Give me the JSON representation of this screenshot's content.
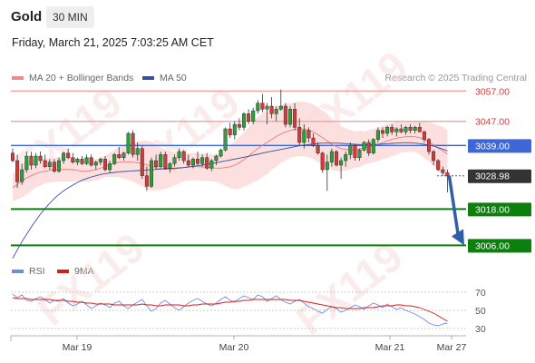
{
  "header": {
    "title": "Gold",
    "timeframe": "30 MIN"
  },
  "timestamp": "Friday, March 21, 2025 7:03:25 AM CET",
  "legend": {
    "ma20": {
      "label": "MA 20 + Bollinger Bands",
      "color": "#f08a8a"
    },
    "ma50": {
      "label": "MA 50",
      "color": "#3a4e9c"
    }
  },
  "credit": "Research © 2025 Trading Central",
  "watermark": "FX119",
  "colors": {
    "up": "#2f9e3a",
    "down": "#d23b3b",
    "wick": "#333333",
    "band": "#fcd9d9",
    "resistance": "#f2a3a3",
    "pivot": "#3d66d6",
    "support": "#0c7f0c",
    "arrow": "#2f5fa8",
    "rsi": "#6f8ce0",
    "rsi_ma": "#d81c1c"
  },
  "chart_data": [
    {
      "type": "line",
      "subtype": "candlestick",
      "title": "Gold",
      "xlabel": "",
      "ylabel": "",
      "ylim": [
        3000.7,
        3060.7
      ],
      "x_ticks": [
        "Mar 19",
        "Mar 20",
        "Mar 21",
        "Mar 27"
      ],
      "grid": false,
      "series": [
        {
          "name": "MA 20 + Bollinger Bands",
          "kind": "ma",
          "values": [
            3025.0,
            3026.2,
            3027.3,
            3028.3,
            3029.0,
            3029.7,
            3030.2,
            3030.5,
            3030.8,
            3031.0,
            3031.1,
            3031.1,
            3031.1,
            3031.0,
            3030.8,
            3030.5,
            3030.5,
            3030.7,
            3031.0,
            3031.5,
            3032.0,
            3032.6,
            3033.1,
            3033.5,
            3033.6,
            3033.6,
            3033.5,
            3033.3,
            3033.0,
            3032.6,
            3032.2,
            3031.7,
            3031.4,
            3031.2,
            3031.2,
            3031.3,
            3031.5,
            3031.7,
            3031.9,
            3032.0,
            3032.0,
            3031.9,
            3031.8,
            3031.6,
            3031.5,
            3031.5,
            3031.7,
            3032.0,
            3032.5,
            3033.3,
            3034.3,
            3035.5,
            3036.8,
            3038.0,
            3039.1,
            3040.0,
            3041.0,
            3042.0,
            3042.8,
            3043.5,
            3044.0,
            3044.3,
            3044.5,
            3044.4,
            3044.1,
            3043.5,
            3042.6,
            3041.6,
            3040.5,
            3039.4,
            3038.6,
            3038.0,
            3037.7,
            3037.6,
            3037.7,
            3037.9,
            3038.2,
            3038.6,
            3039.0,
            3039.4,
            3039.9,
            3040.5,
            3041.0,
            3041.4,
            3041.7,
            3041.9,
            3042.0,
            3041.9,
            3041.6,
            3041.0,
            3040.2,
            3039.2,
            3038.2,
            3037.2,
            3036.1
          ]
        },
        {
          "name": "MA 50",
          "kind": "ma",
          "values": [
            3001.7,
            3004.5,
            3007.2,
            3009.6,
            3012.0,
            3014.2,
            3016.3,
            3018.2,
            3019.9,
            3021.5,
            3022.8,
            3024.0,
            3025.0,
            3025.9,
            3026.8,
            3027.5,
            3028.1,
            3028.6,
            3029.0,
            3029.4,
            3029.7,
            3029.9,
            3030.1,
            3030.3,
            3030.4,
            3030.5,
            3030.6,
            3030.7,
            3030.8,
            3030.9,
            3031.0,
            3031.1,
            3031.2,
            3031.3,
            3031.4,
            3031.5,
            3031.6,
            3031.7,
            3031.9,
            3032.1,
            3032.3,
            3032.5,
            3032.8,
            3033.0,
            3033.3,
            3033.6,
            3033.9,
            3034.2,
            3034.5,
            3034.8,
            3035.1,
            3035.4,
            3035.8,
            3036.1,
            3036.5,
            3036.8,
            3037.1,
            3037.4,
            3037.7,
            3038.0,
            3038.3,
            3038.6,
            3038.9,
            3039.1,
            3039.3,
            3039.5,
            3039.7,
            3039.8,
            3039.8,
            3039.8,
            3039.8,
            3039.7,
            3039.6,
            3039.5,
            3039.4,
            3039.3,
            3039.3,
            3039.3,
            3039.3,
            3039.4,
            3039.5,
            3039.6,
            3039.7,
            3039.8,
            3039.9,
            3039.9,
            3039.9,
            3039.8,
            3039.6,
            3039.4,
            3039.1,
            3038.8,
            3038.3,
            3037.8,
            3037.2
          ]
        }
      ],
      "candles": [
        [
          3036.5,
          3038.0,
          3033.5,
          3034.0
        ],
        [
          3034.0,
          3036.0,
          3025.0,
          3027.0
        ],
        [
          3027.0,
          3033.0,
          3026.0,
          3031.0
        ],
        [
          3031.0,
          3037.0,
          3030.0,
          3035.5
        ],
        [
          3035.5,
          3037.0,
          3031.0,
          3032.5
        ],
        [
          3032.5,
          3036.5,
          3031.5,
          3035.5
        ],
        [
          3035.5,
          3037.0,
          3033.0,
          3034.0
        ],
        [
          3034.0,
          3036.0,
          3031.5,
          3032.0
        ],
        [
          3032.0,
          3034.5,
          3031.0,
          3033.5
        ],
        [
          3033.5,
          3034.5,
          3030.0,
          3030.5
        ],
        [
          3030.5,
          3035.0,
          3030.0,
          3034.0
        ],
        [
          3034.0,
          3037.0,
          3033.0,
          3036.5
        ],
        [
          3036.5,
          3038.0,
          3034.5,
          3035.0
        ],
        [
          3035.0,
          3036.5,
          3033.0,
          3033.5
        ],
        [
          3033.5,
          3035.0,
          3032.5,
          3034.5
        ],
        [
          3034.5,
          3035.5,
          3032.5,
          3033.0
        ],
        [
          3033.0,
          3036.0,
          3032.5,
          3035.0
        ],
        [
          3035.0,
          3036.0,
          3032.0,
          3032.5
        ],
        [
          3032.5,
          3034.0,
          3031.0,
          3033.5
        ],
        [
          3033.5,
          3035.0,
          3032.5,
          3034.5
        ],
        [
          3034.5,
          3035.5,
          3030.5,
          3031.0
        ],
        [
          3031.0,
          3034.0,
          3030.0,
          3033.0
        ],
        [
          3033.0,
          3036.5,
          3032.5,
          3036.0
        ],
        [
          3036.0,
          3038.5,
          3034.5,
          3035.0
        ],
        [
          3035.0,
          3037.0,
          3034.0,
          3036.5
        ],
        [
          3036.5,
          3043.5,
          3036.0,
          3043.0
        ],
        [
          3043.0,
          3044.0,
          3035.0,
          3036.0
        ],
        [
          3036.0,
          3040.0,
          3034.0,
          3038.0
        ],
        [
          3038.0,
          3039.0,
          3028.0,
          3029.0
        ],
        [
          3029.0,
          3032.0,
          3024.0,
          3025.5
        ],
        [
          3025.5,
          3035.0,
          3025.0,
          3034.0
        ],
        [
          3034.0,
          3036.0,
          3031.0,
          3032.0
        ],
        [
          3032.0,
          3037.0,
          3031.5,
          3036.0
        ],
        [
          3036.0,
          3037.0,
          3031.0,
          3031.5
        ],
        [
          3031.5,
          3033.5,
          3030.0,
          3033.0
        ],
        [
          3033.0,
          3036.0,
          3032.0,
          3035.0
        ],
        [
          3035.0,
          3038.0,
          3034.0,
          3037.0
        ],
        [
          3037.0,
          3037.5,
          3033.0,
          3034.0
        ],
        [
          3034.0,
          3036.0,
          3032.0,
          3032.5
        ],
        [
          3032.5,
          3035.0,
          3031.5,
          3034.5
        ],
        [
          3034.5,
          3037.0,
          3032.5,
          3033.0
        ],
        [
          3033.0,
          3036.0,
          3032.0,
          3035.0
        ],
        [
          3035.0,
          3036.5,
          3031.0,
          3031.5
        ],
        [
          3031.5,
          3034.5,
          3030.5,
          3034.0
        ],
        [
          3034.0,
          3036.0,
          3032.5,
          3035.5
        ],
        [
          3035.5,
          3038.0,
          3035.0,
          3037.5
        ],
        [
          3037.5,
          3045.0,
          3037.0,
          3044.5
        ],
        [
          3044.5,
          3046.5,
          3041.5,
          3042.5
        ],
        [
          3042.5,
          3047.0,
          3041.0,
          3046.0
        ],
        [
          3046.0,
          3048.0,
          3044.0,
          3045.0
        ],
        [
          3045.0,
          3050.0,
          3044.0,
          3049.5
        ],
        [
          3049.5,
          3051.0,
          3046.0,
          3047.0
        ],
        [
          3047.0,
          3051.5,
          3046.0,
          3050.5
        ],
        [
          3050.5,
          3054.0,
          3049.5,
          3053.0
        ],
        [
          3053.0,
          3056.0,
          3050.0,
          3051.0
        ],
        [
          3051.0,
          3053.0,
          3046.0,
          3052.0
        ],
        [
          3052.0,
          3055.0,
          3048.0,
          3049.5
        ],
        [
          3049.5,
          3052.0,
          3047.0,
          3051.0
        ],
        [
          3051.0,
          3057.5,
          3050.5,
          3052.0
        ],
        [
          3052.0,
          3053.0,
          3045.0,
          3046.0
        ],
        [
          3046.0,
          3052.0,
          3045.0,
          3051.0
        ],
        [
          3051.0,
          3053.0,
          3044.0,
          3045.0
        ],
        [
          3045.0,
          3048.0,
          3039.0,
          3040.0
        ],
        [
          3040.0,
          3046.0,
          3038.0,
          3044.0
        ],
        [
          3044.0,
          3045.0,
          3040.0,
          3041.5
        ],
        [
          3041.5,
          3043.0,
          3038.5,
          3039.0
        ],
        [
          3039.0,
          3040.0,
          3036.0,
          3036.5
        ],
        [
          3036.5,
          3037.0,
          3030.0,
          3031.0
        ],
        [
          3031.0,
          3036.0,
          3024.0,
          3033.5
        ],
        [
          3033.5,
          3038.0,
          3032.0,
          3037.0
        ],
        [
          3037.0,
          3037.5,
          3032.0,
          3032.5
        ],
        [
          3032.5,
          3035.0,
          3028.0,
          3034.0
        ],
        [
          3034.0,
          3037.0,
          3032.0,
          3036.0
        ],
        [
          3036.0,
          3040.0,
          3034.5,
          3039.0
        ],
        [
          3039.0,
          3039.5,
          3034.0,
          3035.0
        ],
        [
          3035.0,
          3038.0,
          3034.0,
          3037.5
        ],
        [
          3037.5,
          3040.5,
          3037.0,
          3040.0
        ],
        [
          3040.0,
          3041.0,
          3035.5,
          3036.5
        ],
        [
          3036.5,
          3041.5,
          3036.0,
          3041.0
        ],
        [
          3041.0,
          3045.0,
          3040.0,
          3044.0
        ],
        [
          3044.0,
          3045.0,
          3041.5,
          3043.0
        ],
        [
          3043.0,
          3045.5,
          3042.0,
          3045.0
        ],
        [
          3045.0,
          3046.0,
          3042.5,
          3043.5
        ],
        [
          3043.5,
          3045.0,
          3042.0,
          3044.5
        ],
        [
          3044.5,
          3046.0,
          3043.0,
          3043.5
        ],
        [
          3043.5,
          3045.5,
          3042.5,
          3045.0
        ],
        [
          3045.0,
          3046.0,
          3043.0,
          3044.0
        ],
        [
          3044.0,
          3045.5,
          3043.0,
          3045.0
        ],
        [
          3045.0,
          3046.5,
          3043.5,
          3043.5
        ],
        [
          3043.5,
          3044.0,
          3040.0,
          3041.0
        ],
        [
          3041.0,
          3041.5,
          3036.0,
          3037.0
        ],
        [
          3037.0,
          3037.5,
          3032.5,
          3034.0
        ],
        [
          3034.0,
          3034.5,
          3030.5,
          3031.0
        ],
        [
          3031.0,
          3032.0,
          3029.0,
          3030.0
        ],
        [
          3030.0,
          3031.0,
          3023.5,
          3029.0
        ]
      ],
      "bollinger_width": [
        4.5,
        5.0,
        5.5,
        5.5,
        5.0,
        4.5,
        4.5,
        4.0,
        4.0,
        4.0,
        4.0,
        4.0,
        4.0,
        4.0,
        3.5,
        3.5,
        3.5,
        3.5,
        3.5,
        3.5,
        3.5,
        4.0,
        4.5,
        5.0,
        5.5,
        6.0,
        6.5,
        7.0,
        7.5,
        8.0,
        8.0,
        7.5,
        7.0,
        6.5,
        6.0,
        5.5,
        5.0,
        4.5,
        4.5,
        4.5,
        4.5,
        4.5,
        4.5,
        4.5,
        4.5,
        5.0,
        6.0,
        7.0,
        8.0,
        8.5,
        9.0,
        9.5,
        10.0,
        10.5,
        10.5,
        10.5,
        10.0,
        10.0,
        9.5,
        9.5,
        9.0,
        9.0,
        9.0,
        9.0,
        9.0,
        9.0,
        9.0,
        9.0,
        9.0,
        8.5,
        8.0,
        7.5,
        7.0,
        6.5,
        6.0,
        6.0,
        5.5,
        5.5,
        5.5,
        5.5,
        5.5,
        5.5,
        5.5,
        5.5,
        5.0,
        5.0,
        5.0,
        5.0,
        5.5,
        6.0,
        6.5,
        7.0,
        7.5,
        8.0,
        8.0
      ],
      "levels": [
        {
          "label": "3057.00",
          "value": 3057.0,
          "kind": "resistance"
        },
        {
          "label": "3047.00",
          "value": 3047.0,
          "kind": "resistance"
        },
        {
          "label": "3039.00",
          "value": 3039.0,
          "kind": "pivot"
        },
        {
          "label": "3018.00",
          "value": 3018.0,
          "kind": "support"
        },
        {
          "label": "3006.00",
          "value": 3006.0,
          "kind": "support"
        }
      ],
      "current_price": {
        "label": "3028.98",
        "value": 3028.98
      },
      "projection": {
        "from": 3028.98,
        "to": 3006.0
      }
    },
    {
      "type": "line",
      "title": "",
      "xlabel": "",
      "ylabel": "",
      "ylim": [
        26,
        80
      ],
      "y_ticks": [
        70,
        50,
        30
      ],
      "grid": true,
      "series": [
        {
          "name": "RSI",
          "values": [
            68,
            64,
            67,
            61,
            60,
            63,
            65,
            62,
            58,
            61,
            60,
            63,
            58,
            55,
            57,
            60,
            56,
            52,
            55,
            58,
            56,
            53,
            58,
            60,
            55,
            52,
            56,
            59,
            62,
            55,
            49,
            52,
            58,
            61,
            57,
            53,
            50,
            54,
            58,
            61,
            63,
            60,
            57,
            55,
            58,
            62,
            65,
            61,
            59,
            63,
            66,
            64,
            62,
            67,
            65,
            60,
            63,
            66,
            62,
            59,
            57,
            60,
            62,
            58,
            54,
            52,
            49,
            47,
            51,
            54,
            52,
            48,
            50,
            53,
            56,
            54,
            51,
            55,
            58,
            56,
            53,
            57,
            54,
            51,
            53,
            50,
            48,
            46,
            43,
            40,
            36,
            34,
            33,
            35,
            36
          ]
        },
        {
          "name": "9MA",
          "values": [
            64,
            63,
            63,
            63,
            62,
            62,
            62,
            62,
            62,
            61,
            61,
            61,
            60,
            60,
            59,
            59,
            58,
            58,
            57,
            57,
            57,
            57,
            56,
            56,
            56,
            56,
            56,
            56,
            57,
            56,
            56,
            55,
            55,
            56,
            56,
            56,
            56,
            55,
            55,
            56,
            56,
            57,
            57,
            57,
            57,
            58,
            59,
            59,
            60,
            60,
            61,
            61,
            62,
            62,
            62,
            62,
            62,
            62,
            62,
            62,
            61,
            61,
            61,
            60,
            59,
            58,
            57,
            56,
            55,
            54,
            53,
            53,
            52,
            52,
            52,
            52,
            53,
            53,
            53,
            54,
            55,
            55,
            55,
            56,
            56,
            55,
            55,
            54,
            53,
            51,
            49,
            47,
            44,
            41,
            38
          ]
        }
      ]
    }
  ],
  "rsi_legend": [
    {
      "label": "RSI",
      "color": "#6f8ce0"
    },
    {
      "label": "9MA",
      "color": "#d81c1c"
    }
  ],
  "rsi_ticks": [
    "70",
    "50",
    "30"
  ],
  "x_labels": [
    "Mar 19",
    "Mar 20",
    "Mar 21",
    "Mar 27"
  ]
}
